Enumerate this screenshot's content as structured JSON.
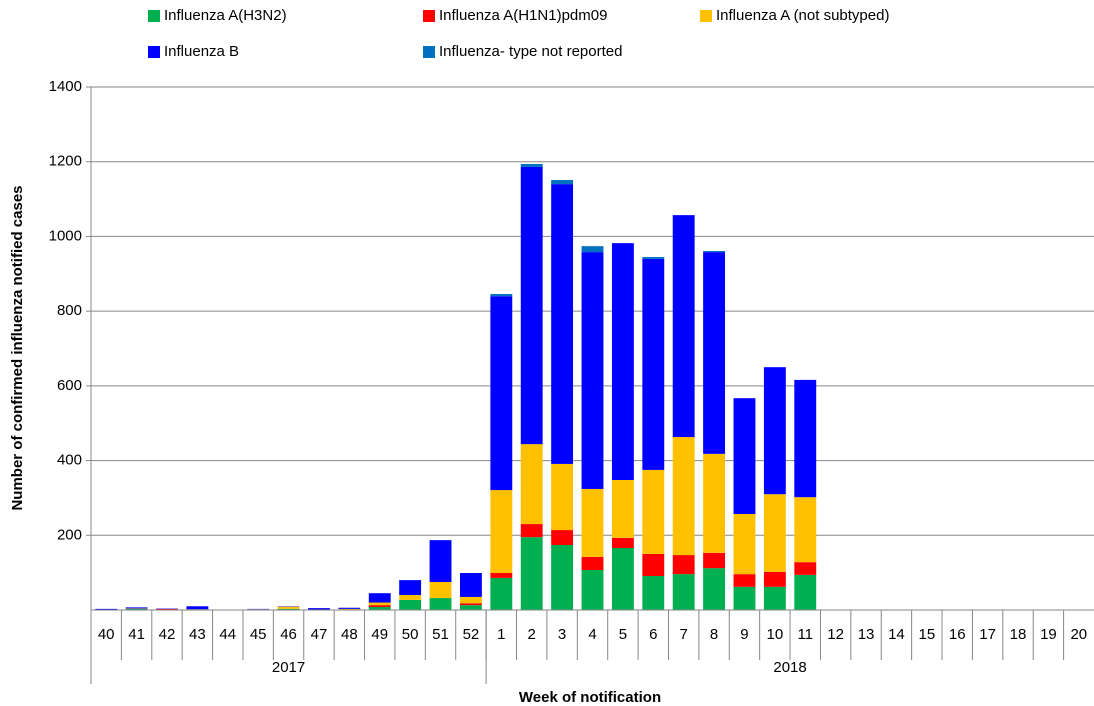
{
  "chart_data": {
    "type": "stacked-bar",
    "x_label": "Week of notification",
    "y_label": "Number of confirmed influenza notified cases",
    "categories": [
      "40",
      "41",
      "42",
      "43",
      "44",
      "45",
      "46",
      "47",
      "48",
      "49",
      "50",
      "51",
      "52",
      "1",
      "2",
      "3",
      "4",
      "5",
      "6",
      "7",
      "8",
      "9",
      "10",
      "11",
      "12",
      "13",
      "14",
      "15",
      "16",
      "17",
      "18",
      "19",
      "20"
    ],
    "category_groups": [
      {
        "label": "2017",
        "size": 13
      },
      {
        "label": "2018",
        "size": 20
      }
    ],
    "ylim": [
      0,
      1400
    ],
    "yticks": [
      200,
      400,
      600,
      800,
      1000,
      1200,
      1400
    ],
    "grid": true,
    "series": [
      {
        "name": "Influenza A(H3N2)",
        "color": "#00b050",
        "values": [
          0,
          3,
          0,
          0,
          0,
          0,
          3,
          0,
          0,
          8,
          27,
          32,
          13,
          86,
          195,
          174,
          107,
          166,
          91,
          96,
          112,
          62,
          62,
          94,
          0,
          0,
          0,
          0,
          0,
          0,
          0,
          0,
          0
        ]
      },
      {
        "name": "Influenza A(H1N1)pdm09",
        "color": "#ff0000",
        "values": [
          0,
          0,
          3,
          0,
          0,
          0,
          0,
          0,
          0,
          5,
          0,
          0,
          5,
          13,
          35,
          40,
          35,
          27,
          59,
          51,
          41,
          34,
          40,
          34,
          0,
          0,
          0,
          0,
          0,
          0,
          0,
          0,
          0
        ]
      },
      {
        "name": "Influenza A (not subtyped)",
        "color": "#ffc000",
        "values": [
          0,
          1,
          0,
          2,
          0,
          2,
          6,
          1,
          3,
          7,
          13,
          43,
          17,
          222,
          214,
          177,
          182,
          155,
          225,
          316,
          265,
          161,
          208,
          174,
          0,
          0,
          0,
          0,
          0,
          0,
          0,
          0,
          0
        ]
      },
      {
        "name": "Influenza B",
        "color": "#0000ff",
        "values": [
          3,
          3,
          1,
          8,
          0,
          1,
          1,
          4,
          3,
          25,
          40,
          112,
          64,
          519,
          742,
          749,
          634,
          634,
          565,
          594,
          540,
          310,
          340,
          314,
          0,
          0,
          0,
          0,
          0,
          0,
          0,
          0,
          0
        ]
      },
      {
        "name": "Influenza- type not reported",
        "color": "#0070c0",
        "values": [
          0,
          0,
          0,
          0,
          0,
          0,
          0,
          0,
          0,
          0,
          0,
          0,
          0,
          6,
          8,
          11,
          16,
          0,
          5,
          0,
          3,
          0,
          0,
          0,
          0,
          0,
          0,
          0,
          0,
          0,
          0,
          0,
          0
        ]
      }
    ]
  }
}
